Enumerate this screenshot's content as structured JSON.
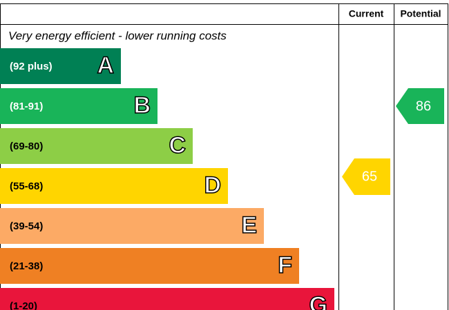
{
  "header": {
    "current": "Current",
    "potential": "Potential"
  },
  "subtitle": "Very energy efficient - lower running costs",
  "bands": [
    {
      "range": "(92 plus)",
      "letter": "A",
      "color": "#008054"
    },
    {
      "range": "(81-91)",
      "letter": "B",
      "color": "#19b459"
    },
    {
      "range": "(69-80)",
      "letter": "C",
      "color": "#8dce46"
    },
    {
      "range": "(55-68)",
      "letter": "D",
      "color": "#ffd500"
    },
    {
      "range": "(39-54)",
      "letter": "E",
      "color": "#fcaa65"
    },
    {
      "range": "(21-38)",
      "letter": "F",
      "color": "#ef8023"
    },
    {
      "range": "(1-20)",
      "letter": "G",
      "color": "#e9153b"
    }
  ],
  "current": {
    "value": 65,
    "color": "#ffd500"
  },
  "potential": {
    "value": 86,
    "color": "#19b459"
  }
}
